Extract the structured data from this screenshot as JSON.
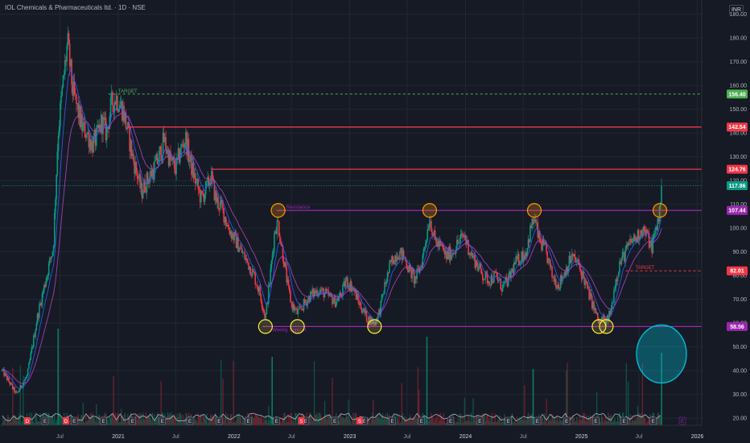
{
  "header": {
    "title": "IOL Chemicals & Pharmaceuticals ltd. · 1D · NSE",
    "currency": "INR"
  },
  "chart_data": {
    "type": "candlestick",
    "symbol": "IOL Chemicals & Pharmaceuticals ltd.",
    "interval": "1D",
    "exchange": "NSE",
    "currency": "INR",
    "ylim": [
      17,
      196
    ],
    "y_ticks": [
      20,
      30,
      40,
      50,
      60,
      70,
      80,
      90,
      100,
      110,
      120,
      130,
      140,
      150,
      160,
      170,
      180,
      190
    ],
    "y_tick_labels": [
      "20.00",
      "30.00",
      "40.00",
      "50.00",
      "60.00",
      "70.00",
      "80.00",
      "90.00",
      "100.00",
      "110.00",
      "120.00",
      "130.00",
      "140.00",
      "150.00",
      "160.00",
      "170.00",
      "180.00",
      "190.00"
    ],
    "x_ticks": [
      {
        "date": "2020-07-01",
        "label": "Jul"
      },
      {
        "date": "2021-01-01",
        "label": "2021"
      },
      {
        "date": "2021-07-01",
        "label": "Jul"
      },
      {
        "date": "2022-01-01",
        "label": "2022"
      },
      {
        "date": "2022-07-01",
        "label": "Jul"
      },
      {
        "date": "2023-01-01",
        "label": "2023"
      },
      {
        "date": "2023-07-01",
        "label": "Jul"
      },
      {
        "date": "2024-01-01",
        "label": "2024"
      },
      {
        "date": "2024-07-01",
        "label": "Jul"
      },
      {
        "date": "2025-01-01",
        "label": "2025"
      },
      {
        "date": "2025-07-01",
        "label": "Jul"
      },
      {
        "date": "2026-01-01",
        "label": "2026"
      }
    ],
    "price_path": [
      [
        "2020-01-01",
        40
      ],
      [
        "2020-02-15",
        30
      ],
      [
        "2020-03-20",
        38
      ],
      [
        "2020-04-20",
        62
      ],
      [
        "2020-05-20",
        80
      ],
      [
        "2020-06-10",
        92
      ],
      [
        "2020-06-25",
        140
      ],
      [
        "2020-07-10",
        160
      ],
      [
        "2020-07-25",
        178
      ],
      [
        "2020-08-10",
        158
      ],
      [
        "2020-08-25",
        150
      ],
      [
        "2020-09-10",
        142
      ],
      [
        "2020-09-25",
        140
      ],
      [
        "2020-10-10",
        135
      ],
      [
        "2020-10-25",
        138
      ],
      [
        "2020-11-10",
        145
      ],
      [
        "2020-11-25",
        140
      ],
      [
        "2020-12-10",
        152
      ],
      [
        "2020-12-25",
        155
      ],
      [
        "2021-01-15",
        150
      ],
      [
        "2021-02-01",
        140
      ],
      [
        "2021-02-15",
        130
      ],
      [
        "2021-03-01",
        123
      ],
      [
        "2021-03-15",
        115
      ],
      [
        "2021-04-01",
        120
      ],
      [
        "2021-04-20",
        124
      ],
      [
        "2021-05-10",
        130
      ],
      [
        "2021-05-25",
        137
      ],
      [
        "2021-06-15",
        128
      ],
      [
        "2021-07-01",
        125
      ],
      [
        "2021-07-15",
        132
      ],
      [
        "2021-08-01",
        138
      ],
      [
        "2021-08-15",
        128
      ],
      [
        "2021-09-01",
        120
      ],
      [
        "2021-09-20",
        112
      ],
      [
        "2021-10-10",
        118
      ],
      [
        "2021-10-20",
        122
      ],
      [
        "2021-11-05",
        112
      ],
      [
        "2021-11-25",
        108
      ],
      [
        "2021-12-15",
        100
      ],
      [
        "2022-01-05",
        95
      ],
      [
        "2022-01-25",
        90
      ],
      [
        "2022-02-15",
        85
      ],
      [
        "2022-03-05",
        80
      ],
      [
        "2022-03-25",
        72
      ],
      [
        "2022-04-10",
        62
      ],
      [
        "2022-04-25",
        80
      ],
      [
        "2022-05-10",
        100
      ],
      [
        "2022-05-20",
        102
      ],
      [
        "2022-06-05",
        88
      ],
      [
        "2022-06-20",
        75
      ],
      [
        "2022-07-01",
        68
      ],
      [
        "2022-07-20",
        64
      ],
      [
        "2022-08-10",
        68
      ],
      [
        "2022-09-01",
        72
      ],
      [
        "2022-09-25",
        74
      ],
      [
        "2022-10-20",
        72
      ],
      [
        "2022-11-15",
        69
      ],
      [
        "2022-12-05",
        72
      ],
      [
        "2022-12-20",
        78
      ],
      [
        "2023-01-10",
        75
      ],
      [
        "2023-02-01",
        68
      ],
      [
        "2023-02-25",
        62
      ],
      [
        "2023-03-20",
        60
      ],
      [
        "2023-04-05",
        65
      ],
      [
        "2023-04-20",
        75
      ],
      [
        "2023-05-10",
        85
      ],
      [
        "2023-06-01",
        90
      ],
      [
        "2023-06-20",
        88
      ],
      [
        "2023-07-10",
        82
      ],
      [
        "2023-07-25",
        78
      ],
      [
        "2023-08-15",
        85
      ],
      [
        "2023-09-01",
        98
      ],
      [
        "2023-09-10",
        105
      ],
      [
        "2023-09-25",
        95
      ],
      [
        "2023-10-15",
        92
      ],
      [
        "2023-11-01",
        88
      ],
      [
        "2023-11-20",
        90
      ],
      [
        "2023-12-10",
        94
      ],
      [
        "2023-12-28",
        97
      ],
      [
        "2024-01-15",
        90
      ],
      [
        "2024-02-05",
        85
      ],
      [
        "2024-02-25",
        80
      ],
      [
        "2024-03-15",
        78
      ],
      [
        "2024-04-05",
        80
      ],
      [
        "2024-04-25",
        75
      ],
      [
        "2024-05-15",
        78
      ],
      [
        "2024-06-05",
        85
      ],
      [
        "2024-06-25",
        88
      ],
      [
        "2024-07-10",
        90
      ],
      [
        "2024-07-25",
        100
      ],
      [
        "2024-08-05",
        104
      ],
      [
        "2024-08-20",
        95
      ],
      [
        "2024-09-10",
        90
      ],
      [
        "2024-09-30",
        80
      ],
      [
        "2024-10-20",
        76
      ],
      [
        "2024-11-10",
        82
      ],
      [
        "2024-12-01",
        88
      ],
      [
        "2024-12-20",
        85
      ],
      [
        "2025-01-10",
        78
      ],
      [
        "2025-01-30",
        70
      ],
      [
        "2025-02-15",
        64
      ],
      [
        "2025-02-25",
        60
      ],
      [
        "2025-03-10",
        62
      ],
      [
        "2025-03-20",
        60
      ],
      [
        "2025-04-05",
        66
      ],
      [
        "2025-04-15",
        76
      ],
      [
        "2025-05-01",
        85
      ],
      [
        "2025-05-20",
        90
      ],
      [
        "2025-06-10",
        95
      ],
      [
        "2025-06-25",
        96
      ],
      [
        "2025-07-10",
        100
      ],
      [
        "2025-07-25",
        97
      ],
      [
        "2025-08-10",
        92
      ],
      [
        "2025-08-25",
        100
      ],
      [
        "2025-09-05",
        108
      ],
      [
        "2025-09-10",
        117.86
      ]
    ],
    "horizontal_levels": [
      {
        "price": 156.4,
        "label": "156.40",
        "style": "dashed",
        "color": "#4caf50",
        "from": "2020-12-01",
        "text": "TARGET"
      },
      {
        "price": 142.54,
        "label": "142.54",
        "style": "solid",
        "color": "#f23645",
        "from": "2021-02-01"
      },
      {
        "price": 124.76,
        "label": "124.76",
        "style": "solid",
        "color": "#f23645",
        "from": "2021-10-20"
      },
      {
        "price": 117.86,
        "label": "117.86",
        "style": "dotted",
        "color": "#089981",
        "from": "2020-01-01"
      },
      {
        "price": 107.44,
        "label": "107.44",
        "style": "solid",
        "color": "#9c27b0",
        "from": "2022-05-15",
        "text": "Resistance"
      },
      {
        "price": 82.01,
        "label": "82.01",
        "style": "dashed",
        "color": "#f23645",
        "from": "2025-05-20",
        "text": "TARGET"
      },
      {
        "price": 58.56,
        "label": "58.56",
        "style": "solid",
        "color": "#9c27b0",
        "from": "2022-04-01",
        "text": "Weekly Support"
      }
    ],
    "price_label_colors": {
      "156.40": "#4caf50",
      "142.54": "#f23645",
      "124.76": "#f23645",
      "117.86": "#089981",
      "107.44": "#9c27b0",
      "82.01": "#f23645",
      "58.56": "#9c27b0"
    },
    "resistance_touches": [
      "2022-05-20",
      "2023-09-10",
      "2024-08-05",
      "2025-09-05"
    ],
    "support_touches": [
      "2022-04-10",
      "2022-07-20",
      "2023-03-20",
      "2025-02-25",
      "2025-03-20"
    ],
    "highlight_circle": {
      "date": "2025-09-10",
      "price": 47,
      "color": "#00bcd4"
    },
    "earnings_markers": [
      "2020-05-15",
      "2020-08-15",
      "2020-11-15",
      "2021-02-15",
      "2021-05-20",
      "2021-08-15",
      "2021-11-15",
      "2022-02-15",
      "2022-05-15",
      "2022-08-15",
      "2022-11-15",
      "2023-02-15",
      "2023-05-15",
      "2023-08-15",
      "2023-11-15",
      "2024-02-15",
      "2024-05-15",
      "2024-08-15",
      "2024-11-15",
      "2025-02-15",
      "2025-05-15",
      "2025-08-15"
    ],
    "dividend_markers": [
      "2020-03-20",
      "2020-07-20"
    ],
    "split_markers": [
      "2022-08-01",
      "2023-02-01"
    ],
    "indicators": [
      "EMA fast",
      "EMA slow",
      "Volume",
      "Volume MA"
    ]
  }
}
